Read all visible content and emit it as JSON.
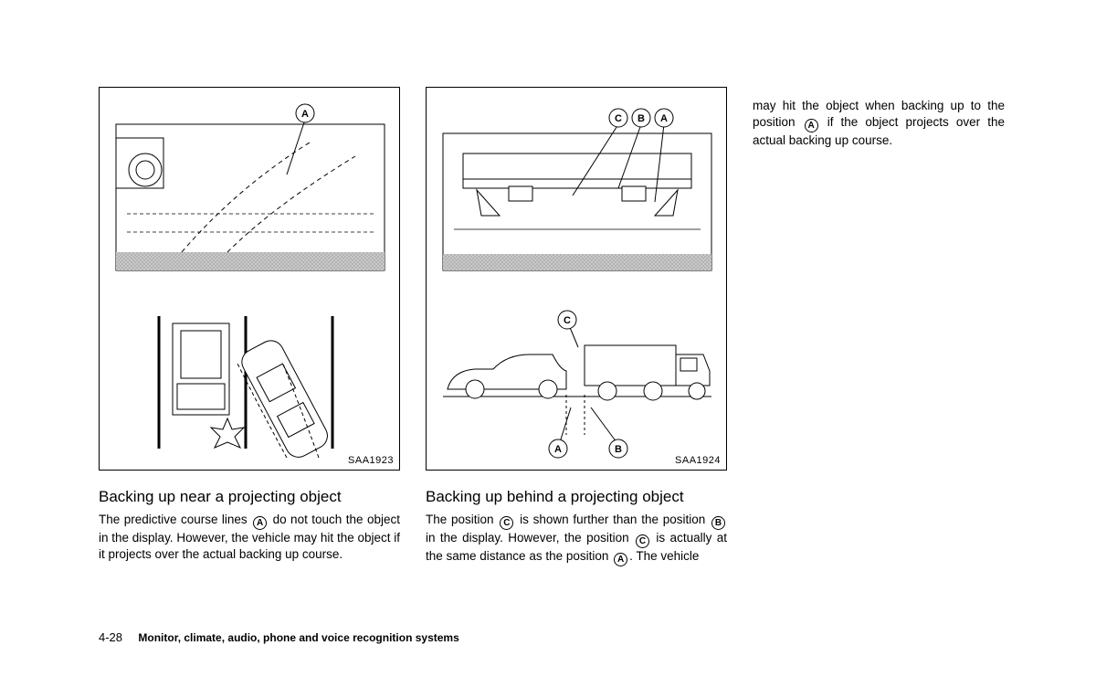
{
  "page": {
    "number": "4-28",
    "chapter": "Monitor, climate, audio, phone and voice recognition systems"
  },
  "col1": {
    "figure_code": "SAA1923",
    "heading": "Backing up near a projecting object",
    "body_pre": "The predictive course lines ",
    "body_marker": "A",
    "body_post": " do not touch the object in the display. However, the vehicle may hit the object if it projects over the actual backing up course.",
    "callout_labels": [
      "A"
    ],
    "diagram": {
      "stroke": "#000000",
      "fill_bg": "#ffffff",
      "hatch_color": "#808080"
    }
  },
  "col2": {
    "figure_code": "SAA1924",
    "heading": "Backing up behind a projecting object",
    "body_parts": [
      "The position ",
      {
        "m": "C"
      },
      " is shown further than the position ",
      {
        "m": "B"
      },
      " in the display. However, the position ",
      {
        "m": "C"
      },
      " is actually at the same distance as the position ",
      {
        "m": "A"
      },
      ". The vehicle"
    ],
    "callout_labels": [
      "C",
      "B",
      "A"
    ],
    "bottom_labels": [
      "C",
      "A",
      "B"
    ],
    "diagram": {
      "stroke": "#000000",
      "fill_bg": "#ffffff"
    }
  },
  "col3": {
    "body_parts": [
      "may hit the object when backing up to the position ",
      {
        "m": "A"
      },
      " if the object projects over the actual backing up course."
    ]
  }
}
